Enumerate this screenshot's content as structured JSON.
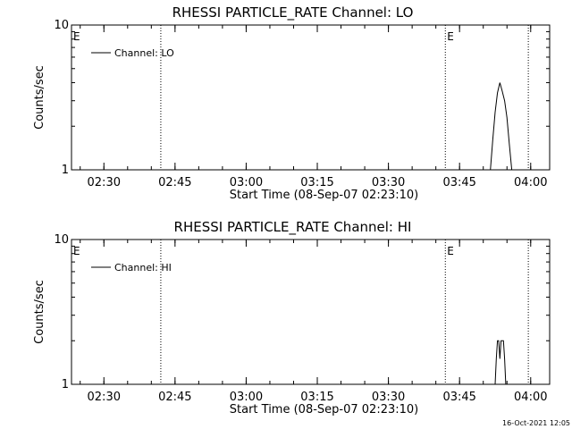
{
  "footer_stamp": "16-Oct-2021 12:05",
  "chart_data": [
    {
      "type": "line",
      "title": "RHESSI PARTICLE_RATE Channel: LO",
      "xlabel": "Start Time (08-Sep-07 02:23:10)",
      "ylabel": "Counts/sec",
      "y_scale": "log",
      "ylim": [
        1,
        10
      ],
      "xlim": [
        "02:23:10",
        "04:04:00"
      ],
      "xticks": [
        "02:30",
        "02:45",
        "03:00",
        "03:15",
        "03:30",
        "03:45",
        "04:00"
      ],
      "yticks": [
        "1",
        "10"
      ],
      "legend": {
        "entries": [
          "Channel: LO"
        ],
        "placement": "top-left"
      },
      "grid": false,
      "vertical_markers": [
        {
          "time": "02:23:10",
          "label": "E"
        },
        {
          "time": "02:42:00",
          "label": ""
        },
        {
          "time": "03:42:00",
          "label": "E"
        },
        {
          "time": "03:59:30",
          "label": ""
        }
      ],
      "series": [
        {
          "name": "Channel: LO",
          "x": [
            "03:51:30",
            "03:52:00",
            "03:52:30",
            "03:53:00",
            "03:53:30",
            "03:54:00",
            "03:54:30",
            "03:55:00",
            "03:55:30",
            "03:56:00"
          ],
          "values": [
            1.0,
            1.6,
            2.5,
            3.4,
            4.0,
            3.5,
            3.0,
            2.3,
            1.5,
            1.0
          ]
        }
      ]
    },
    {
      "type": "line",
      "title": "RHESSI PARTICLE_RATE Channel: HI",
      "xlabel": "Start Time (08-Sep-07 02:23:10)",
      "ylabel": "Counts/sec",
      "y_scale": "log",
      "ylim": [
        1,
        10
      ],
      "xlim": [
        "02:23:10",
        "04:04:00"
      ],
      "xticks": [
        "02:30",
        "02:45",
        "03:00",
        "03:15",
        "03:30",
        "03:45",
        "04:00"
      ],
      "yticks": [
        "1",
        "10"
      ],
      "legend": {
        "entries": [
          "Channel: HI"
        ],
        "placement": "top-left"
      },
      "grid": false,
      "vertical_markers": [
        {
          "time": "02:23:10",
          "label": "E"
        },
        {
          "time": "02:42:00",
          "label": ""
        },
        {
          "time": "03:42:00",
          "label": "E"
        },
        {
          "time": "03:59:30",
          "label": ""
        }
      ],
      "series": [
        {
          "name": "Channel: HI",
          "x": [
            "03:52:30",
            "03:52:45",
            "03:53:00",
            "03:53:15",
            "03:53:30",
            "03:53:45",
            "03:54:00",
            "03:54:15",
            "03:54:30",
            "03:54:45"
          ],
          "values": [
            1.0,
            1.5,
            2.0,
            2.0,
            1.5,
            2.0,
            2.0,
            2.0,
            1.5,
            1.0
          ]
        }
      ]
    }
  ]
}
